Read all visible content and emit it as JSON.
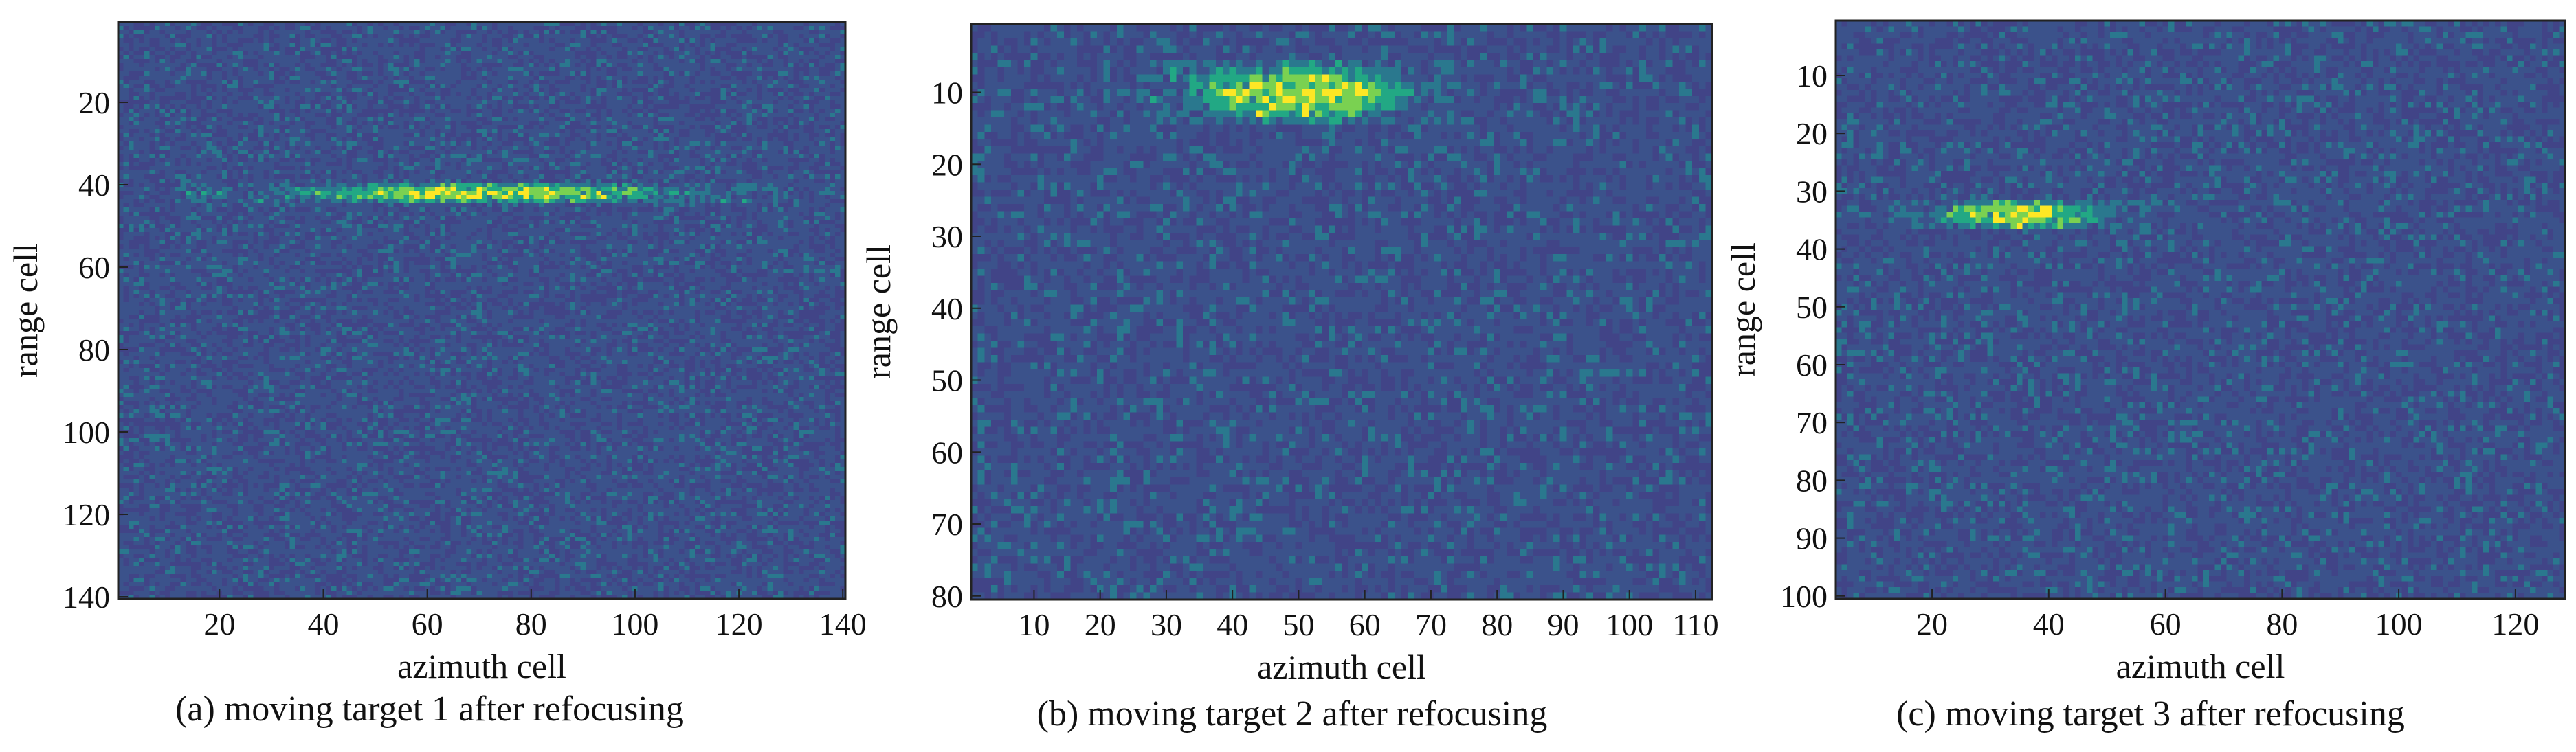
{
  "chart_data": [
    {
      "type": "heatmap",
      "caption": "(a) moving target 1 after refocusing",
      "xlabel": "azimuth cell",
      "ylabel": "range cell",
      "xlim": [
        1,
        140
      ],
      "ylim": [
        1,
        140
      ],
      "x_ticks": [
        20,
        40,
        60,
        80,
        100,
        120,
        140
      ],
      "y_ticks": [
        20,
        40,
        60,
        80,
        100,
        120,
        140
      ],
      "cols": 140,
      "rows": 140,
      "colors": [
        "#414487",
        "#3b528b",
        "#2a788e",
        "#22a884",
        "#7ad151",
        "#fde725"
      ],
      "hotspot": {
        "center_x": 70,
        "center_y": 42,
        "half_width": 48,
        "half_height": 3
      }
    },
    {
      "type": "heatmap",
      "caption": "(b) moving target 2 after refocusing",
      "xlabel": "azimuth cell",
      "ylabel": "range cell",
      "xlim": [
        1,
        112
      ],
      "ylim": [
        1,
        80
      ],
      "x_ticks": [
        10,
        20,
        30,
        40,
        50,
        60,
        70,
        80,
        90,
        100,
        110
      ],
      "y_ticks": [
        10,
        20,
        30,
        40,
        50,
        60,
        70,
        80
      ],
      "cols": 112,
      "rows": 80,
      "colors": [
        "#414487",
        "#3b528b",
        "#2a788e",
        "#22a884",
        "#7ad151",
        "#fde725"
      ],
      "hotspot": {
        "center_x": 50,
        "center_y": 10,
        "half_width": 20,
        "half_height": 5
      }
    },
    {
      "type": "heatmap",
      "caption": "(c) moving target 3 after refocusing",
      "xlabel": "azimuth cell",
      "ylabel": "range cell",
      "xlim": [
        4,
        128
      ],
      "ylim": [
        1,
        100
      ],
      "x_ticks": [
        20,
        40,
        60,
        80,
        100,
        120
      ],
      "y_ticks": [
        10,
        20,
        30,
        40,
        50,
        60,
        70,
        80,
        90,
        100
      ],
      "cols": 125,
      "rows": 100,
      "colors": [
        "#414487",
        "#3b528b",
        "#2a788e",
        "#22a884",
        "#7ad151",
        "#fde725"
      ],
      "hotspot": {
        "center_x": 35,
        "center_y": 34,
        "half_width": 18,
        "half_height": 3
      }
    }
  ]
}
